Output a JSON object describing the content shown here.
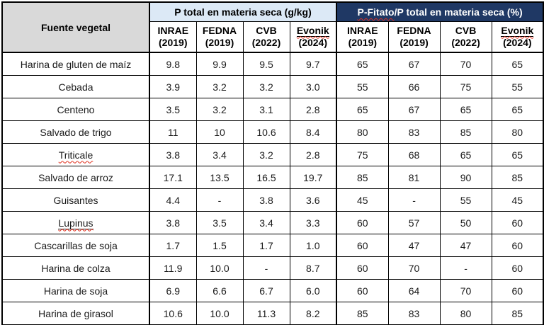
{
  "colors": {
    "header_gray": "#D9D9D9",
    "light_blue": "#DCE9F6",
    "dark_navy": "#1F3864",
    "border_black": "#000000",
    "squiggle_red": "#E0301E"
  },
  "table": {
    "corner_header": "Fuente vegetal",
    "group_headers": {
      "p_total": "P total en materia seca (g/kg)",
      "p_fitato_squiggle_part": "P-Fitato",
      "p_fitato_rest": "/P total en materia seca (%)"
    },
    "sources": [
      {
        "name": "INRAE",
        "year": "(2019)"
      },
      {
        "name": "FEDNA",
        "year": "(2019)"
      },
      {
        "name": "CVB",
        "year": "(2022)"
      },
      {
        "name": "Evonik",
        "year": "(2024)",
        "underline": true,
        "squiggle": true
      }
    ],
    "rows": [
      {
        "name": "Harina de gluten de maíz",
        "p_total": [
          "9.8",
          "9.9",
          "9.5",
          "9.7"
        ],
        "p_fitato": [
          "65",
          "67",
          "70",
          "65"
        ]
      },
      {
        "name": "Cebada",
        "p_total": [
          "3.9",
          "3.2",
          "3.2",
          "3.0"
        ],
        "p_fitato": [
          "55",
          "66",
          "75",
          "55"
        ]
      },
      {
        "name": "Centeno",
        "p_total": [
          "3.5",
          "3.2",
          "3.1",
          "2.8"
        ],
        "p_fitato": [
          "65",
          "67",
          "65",
          "65"
        ]
      },
      {
        "name": "Salvado de trigo",
        "p_total": [
          "11",
          "10",
          "10.6",
          "8.4"
        ],
        "p_fitato": [
          "80",
          "83",
          "85",
          "80"
        ]
      },
      {
        "name": "Triticale",
        "squiggle": true,
        "p_total": [
          "3.8",
          "3.4",
          "3.2",
          "2.8"
        ],
        "p_fitato": [
          "75",
          "68",
          "65",
          "65"
        ]
      },
      {
        "name": "Salvado de arroz",
        "p_total": [
          "17.1",
          "13.5",
          "16.5",
          "19.7"
        ],
        "p_fitato": [
          "85",
          "81",
          "90",
          "85"
        ]
      },
      {
        "name": "Guisantes",
        "p_total": [
          "4.4",
          "-",
          "3.8",
          "3.6"
        ],
        "p_fitato": [
          "45",
          "-",
          "55",
          "45"
        ]
      },
      {
        "name": "Lupinus",
        "underline": true,
        "squiggle": true,
        "p_total": [
          "3.8",
          "3.5",
          "3.4",
          "3.3"
        ],
        "p_fitato": [
          "60",
          "57",
          "50",
          "60"
        ]
      },
      {
        "name": "Cascarillas de soja",
        "p_total": [
          "1.7",
          "1.5",
          "1.7",
          "1.0"
        ],
        "p_fitato": [
          "60",
          "47",
          "47",
          "60"
        ]
      },
      {
        "name": "Harina de colza",
        "p_total": [
          "11.9",
          "10.0",
          "-",
          "8.7"
        ],
        "p_fitato": [
          "60",
          "70",
          "-",
          "60"
        ]
      },
      {
        "name": "Harina de soja",
        "p_total": [
          "6.9",
          "6.6",
          "6.7",
          "6.0"
        ],
        "p_fitato": [
          "60",
          "64",
          "70",
          "60"
        ]
      },
      {
        "name": "Harina de girasol",
        "p_total": [
          "10.6",
          "10.0",
          "11.3",
          "8.2"
        ],
        "p_fitato": [
          "85",
          "83",
          "80",
          "85"
        ]
      }
    ]
  }
}
